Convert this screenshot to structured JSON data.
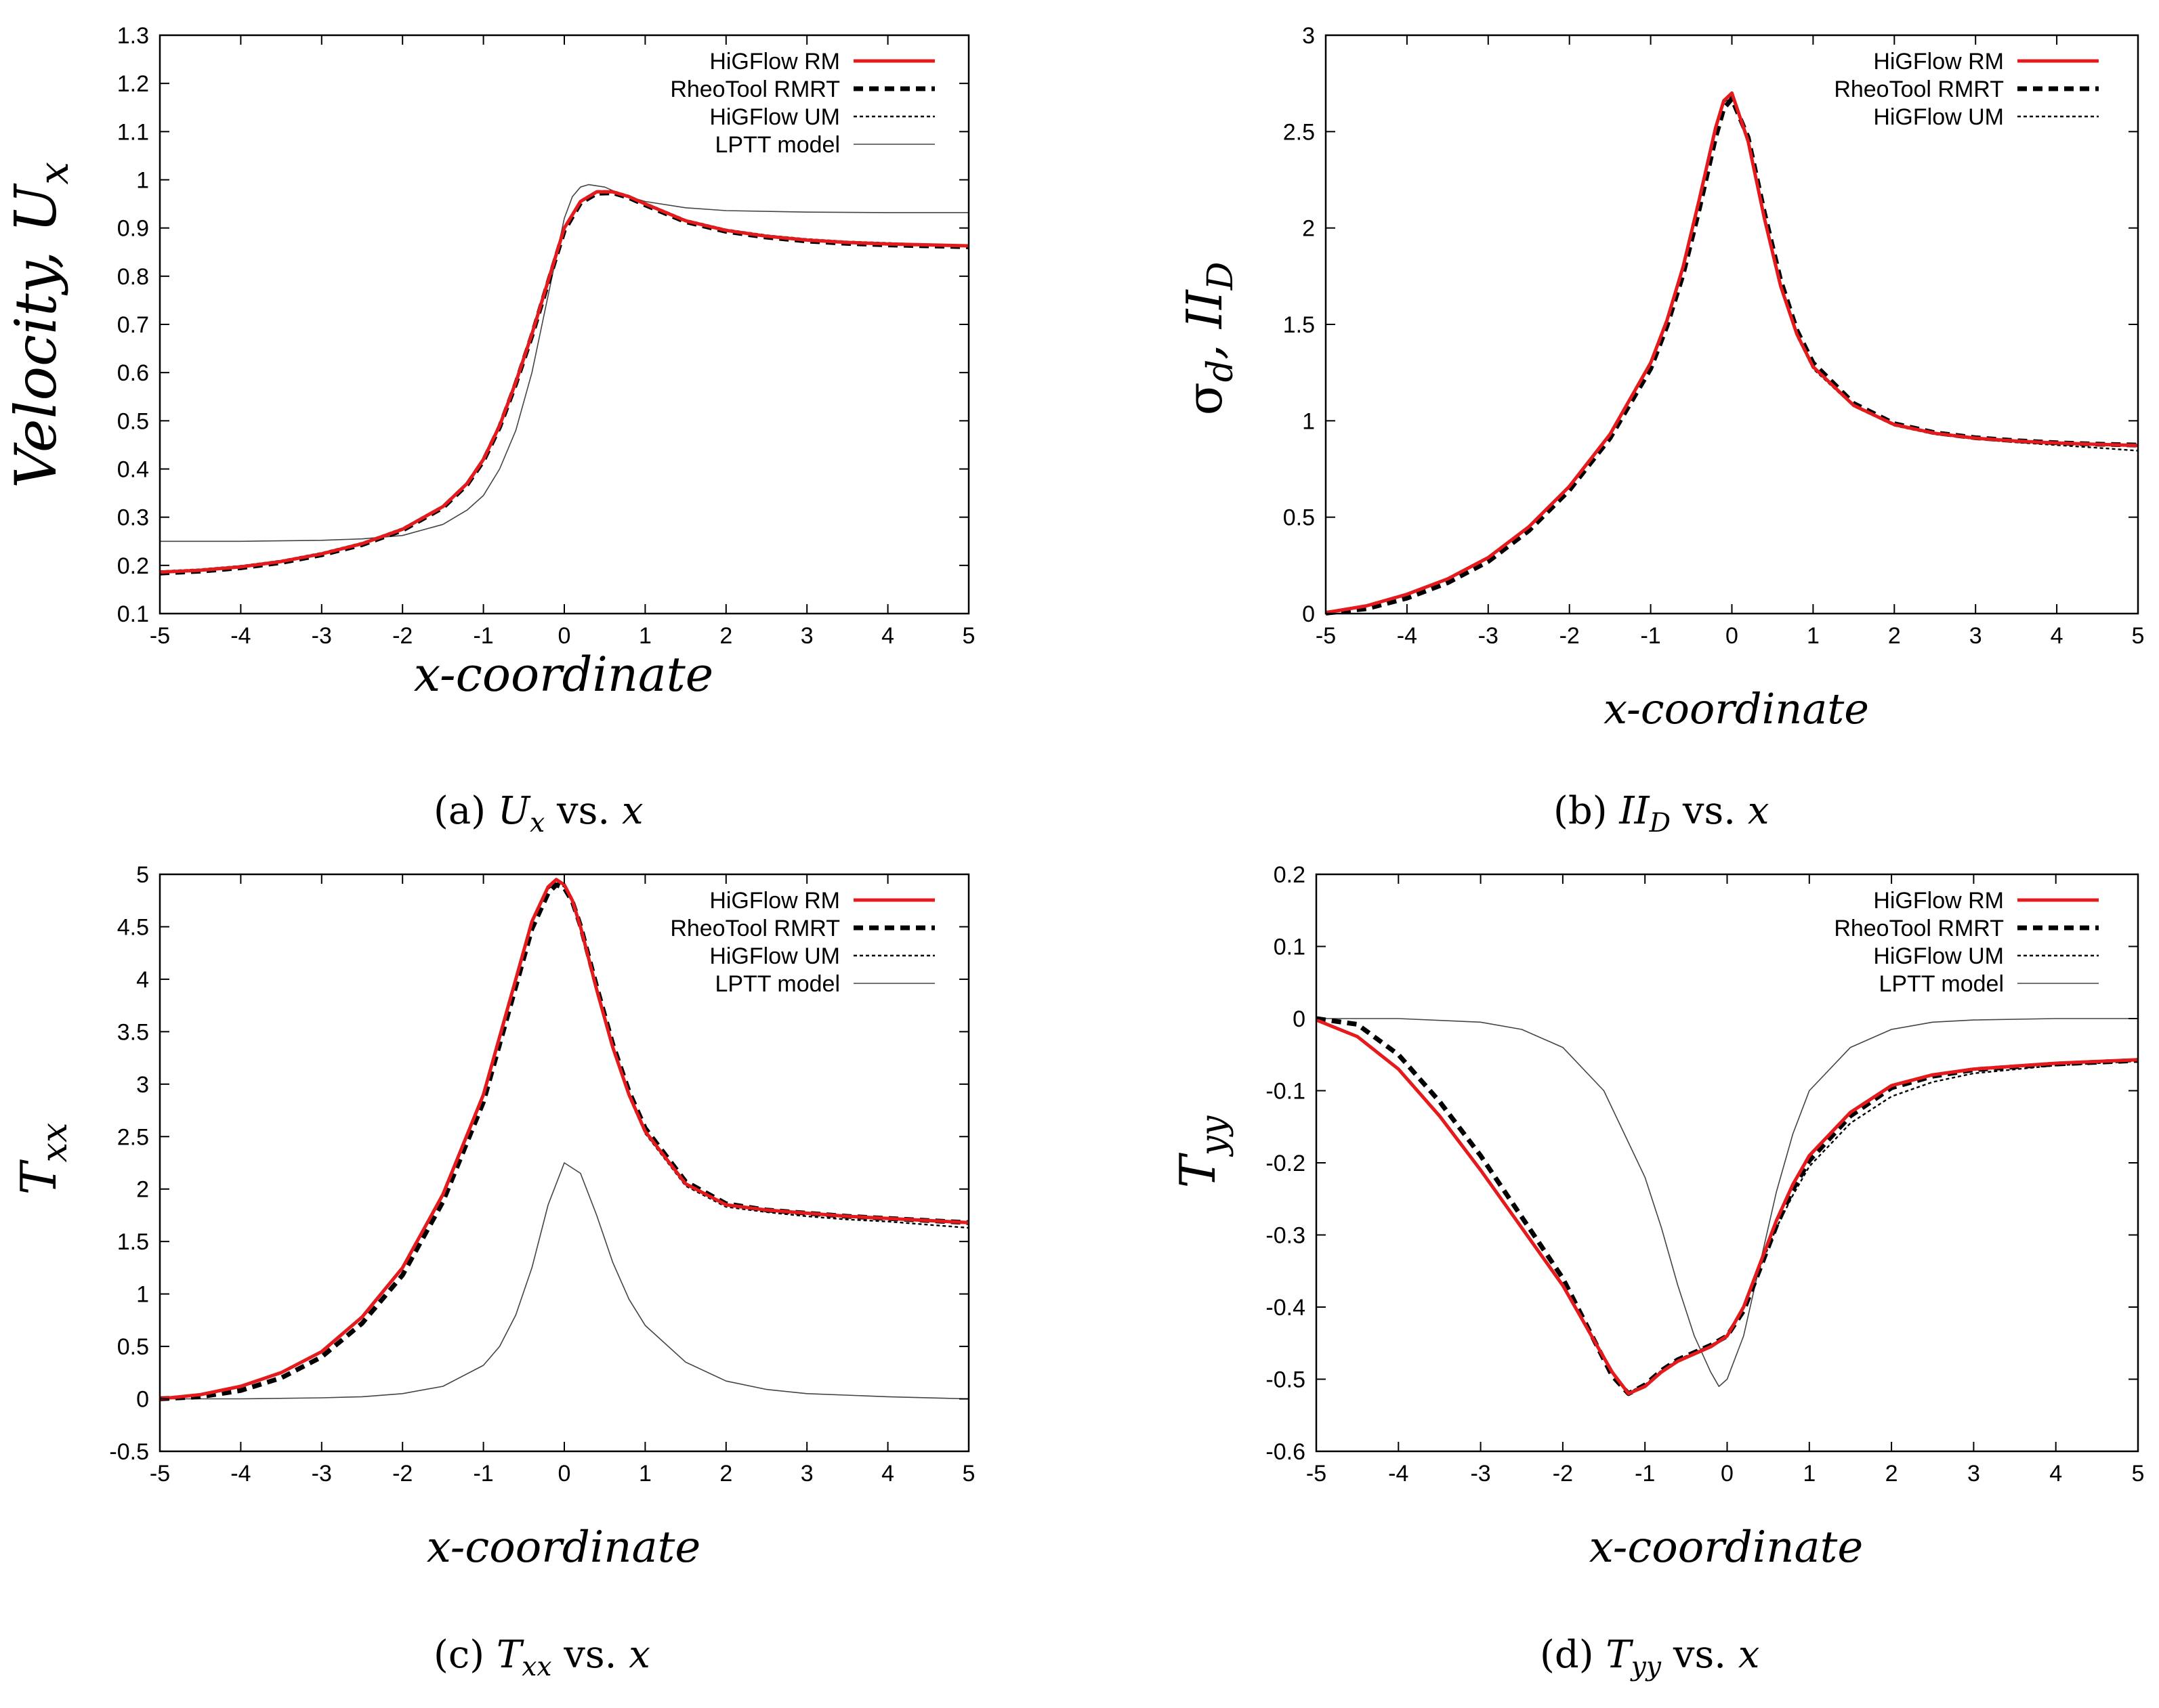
{
  "legend_labels": {
    "rm": "HiGFlow RM",
    "rmrt": "RheoTool RMRT",
    "um": "HiGFlow UM",
    "lptt": "LPTT model"
  },
  "series_colors": {
    "rm": "#e41a1c",
    "rmrt": "#000000",
    "um": "#000000",
    "lptt": "#444444"
  },
  "captions": [
    {
      "letter": "(a)",
      "symbol": "U",
      "subscript": "x",
      "rest": "vs.",
      "var": "x"
    },
    {
      "letter": "(b)",
      "symbol": "II",
      "subscript": "D",
      "rest": "vs.",
      "var": "x"
    },
    {
      "letter": "(c)",
      "symbol": "T",
      "subscript": "xx",
      "rest": "vs.",
      "var": "x"
    },
    {
      "letter": "(d)",
      "symbol": "T",
      "subscript": "yy",
      "rest": "vs.",
      "var": "x"
    }
  ],
  "chart_data": [
    {
      "type": "line",
      "id": "a",
      "xlabel": "x-coordinate",
      "ylabel": "Velocity, U",
      "ylabel_sub": "x",
      "xlim": [
        -5,
        5
      ],
      "ylim": [
        0.1,
        1.3
      ],
      "xticks": [
        -5,
        -4,
        -3,
        -2,
        -1,
        0,
        1,
        2,
        3,
        4,
        5
      ],
      "yticks": [
        0.1,
        0.2,
        0.3,
        0.4,
        0.5,
        0.6,
        0.7,
        0.8,
        0.9,
        1,
        1.1,
        1.2,
        1.3
      ],
      "legend": [
        "rm",
        "rmrt",
        "um",
        "lptt"
      ],
      "series": [
        {
          "key": "rm",
          "name": "HiGFlow RM",
          "x": [
            -5,
            -4.5,
            -4,
            -3.5,
            -3,
            -2.5,
            -2,
            -1.5,
            -1.2,
            -1,
            -0.8,
            -0.6,
            -0.4,
            -0.2,
            0,
            0.2,
            0.4,
            0.6,
            0.8,
            1,
            1.5,
            2,
            2.5,
            3,
            3.5,
            4,
            4.5,
            5
          ],
          "y": [
            0.186,
            0.19,
            0.197,
            0.208,
            0.224,
            0.245,
            0.275,
            0.322,
            0.37,
            0.42,
            0.49,
            0.58,
            0.68,
            0.79,
            0.9,
            0.955,
            0.975,
            0.975,
            0.965,
            0.95,
            0.915,
            0.895,
            0.883,
            0.875,
            0.87,
            0.867,
            0.865,
            0.863
          ]
        },
        {
          "key": "rmrt",
          "name": "RheoTool RMRT",
          "x": [
            -5,
            -4.5,
            -4,
            -3.5,
            -3,
            -2.5,
            -2,
            -1.5,
            -1.2,
            -1,
            -0.8,
            -0.6,
            -0.4,
            -0.2,
            0,
            0.2,
            0.4,
            0.6,
            0.8,
            1,
            1.5,
            2,
            2.5,
            3,
            3.5,
            4,
            4.5,
            5
          ],
          "y": [
            0.184,
            0.188,
            0.195,
            0.206,
            0.222,
            0.243,
            0.273,
            0.32,
            0.368,
            0.417,
            0.487,
            0.577,
            0.677,
            0.787,
            0.895,
            0.952,
            0.972,
            0.973,
            0.963,
            0.948,
            0.913,
            0.893,
            0.881,
            0.873,
            0.868,
            0.865,
            0.863,
            0.861
          ]
        },
        {
          "key": "um",
          "name": "HiGFlow UM",
          "x": [
            -5,
            -4.5,
            -4,
            -3.5,
            -3,
            -2.5,
            -2,
            -1.5,
            -1.2,
            -1,
            -0.8,
            -0.6,
            -0.4,
            -0.2,
            0,
            0.2,
            0.4,
            0.6,
            0.8,
            1,
            1.5,
            2,
            2.5,
            3,
            3.5,
            4,
            4.5,
            5
          ],
          "y": [
            0.188,
            0.192,
            0.199,
            0.21,
            0.226,
            0.247,
            0.277,
            0.324,
            0.372,
            0.422,
            0.492,
            0.582,
            0.682,
            0.792,
            0.902,
            0.957,
            0.977,
            0.977,
            0.967,
            0.952,
            0.917,
            0.897,
            0.885,
            0.877,
            0.872,
            0.869,
            0.866,
            0.864
          ]
        },
        {
          "key": "lptt",
          "name": "LPTT model",
          "x": [
            -5,
            -4,
            -3,
            -2.5,
            -2,
            -1.5,
            -1.2,
            -1,
            -0.8,
            -0.6,
            -0.4,
            -0.2,
            0,
            0.1,
            0.2,
            0.3,
            0.5,
            0.7,
            1,
            1.5,
            2,
            3,
            4,
            5
          ],
          "y": [
            0.25,
            0.25,
            0.252,
            0.255,
            0.262,
            0.285,
            0.315,
            0.345,
            0.4,
            0.48,
            0.6,
            0.76,
            0.92,
            0.965,
            0.985,
            0.99,
            0.985,
            0.97,
            0.955,
            0.942,
            0.936,
            0.933,
            0.932,
            0.932
          ]
        }
      ]
    },
    {
      "type": "line",
      "id": "b",
      "xlabel": "x-coordinate",
      "ylabel": "σ",
      "ylabel_sub": "d",
      "ylabel_tail": ", II",
      "ylabel_tail_sub": "D",
      "xlim": [
        -5,
        5
      ],
      "ylim": [
        0,
        3
      ],
      "xticks": [
        -5,
        -4,
        -3,
        -2,
        -1,
        0,
        1,
        2,
        3,
        4,
        5
      ],
      "yticks": [
        0,
        0.5,
        1,
        1.5,
        2,
        2.5,
        3
      ],
      "legend": [
        "rm",
        "rmrt",
        "um"
      ],
      "series": [
        {
          "key": "rm",
          "name": "HiGFlow RM",
          "x": [
            -5,
            -4.5,
            -4,
            -3.5,
            -3,
            -2.5,
            -2,
            -1.5,
            -1,
            -0.8,
            -0.6,
            -0.4,
            -0.2,
            -0.1,
            0,
            0.2,
            0.4,
            0.6,
            0.8,
            1,
            1.5,
            2,
            2.5,
            3,
            3.5,
            4,
            4.5,
            5
          ],
          "y": [
            0.005,
            0.04,
            0.1,
            0.18,
            0.29,
            0.45,
            0.66,
            0.93,
            1.3,
            1.52,
            1.8,
            2.15,
            2.52,
            2.66,
            2.7,
            2.45,
            2.05,
            1.7,
            1.45,
            1.28,
            1.08,
            0.98,
            0.935,
            0.91,
            0.895,
            0.885,
            0.878,
            0.872
          ]
        },
        {
          "key": "rmrt",
          "name": "RheoTool RMRT",
          "x": [
            -5,
            -4.5,
            -4,
            -3.5,
            -3,
            -2.5,
            -2,
            -1.5,
            -1,
            -0.8,
            -0.6,
            -0.4,
            -0.2,
            -0.1,
            0,
            0.2,
            0.4,
            0.6,
            0.8,
            1,
            1.5,
            2,
            2.5,
            3,
            3.5,
            4,
            4.5,
            5
          ],
          "y": [
            0.002,
            0.025,
            0.08,
            0.16,
            0.27,
            0.43,
            0.64,
            0.91,
            1.27,
            1.49,
            1.76,
            2.1,
            2.47,
            2.62,
            2.67,
            2.47,
            2.08,
            1.73,
            1.47,
            1.3,
            1.09,
            0.985,
            0.938,
            0.912,
            0.897,
            0.886,
            0.879,
            0.874
          ]
        },
        {
          "key": "um",
          "name": "HiGFlow UM",
          "x": [
            -5,
            -4.5,
            -4,
            -3.5,
            -3,
            -2.5,
            -2,
            -1.5,
            -1,
            -0.8,
            -0.6,
            -0.4,
            -0.2,
            -0.1,
            0,
            0.2,
            0.4,
            0.6,
            0.8,
            1,
            1.5,
            2,
            2.5,
            3,
            3.5,
            4,
            4.5,
            5
          ],
          "y": [
            0.006,
            0.042,
            0.102,
            0.182,
            0.292,
            0.452,
            0.662,
            0.932,
            1.3,
            1.52,
            1.8,
            2.14,
            2.51,
            2.65,
            2.69,
            2.44,
            2.04,
            1.69,
            1.44,
            1.27,
            1.075,
            0.975,
            0.93,
            0.905,
            0.888,
            0.874,
            0.86,
            0.845
          ]
        }
      ]
    },
    {
      "type": "line",
      "id": "c",
      "xlabel": "x-coordinate",
      "ylabel": "T",
      "ylabel_sub": "xx",
      "xlim": [
        -5,
        5
      ],
      "ylim": [
        -0.5,
        5
      ],
      "xticks": [
        -5,
        -4,
        -3,
        -2,
        -1,
        0,
        1,
        2,
        3,
        4,
        5
      ],
      "yticks": [
        -0.5,
        0,
        0.5,
        1,
        1.5,
        2,
        2.5,
        3,
        3.5,
        4,
        4.5,
        5
      ],
      "legend": [
        "rm",
        "rmrt",
        "um",
        "lptt"
      ],
      "series": [
        {
          "key": "rm",
          "name": "HiGFlow RM",
          "x": [
            -5,
            -4.5,
            -4,
            -3.5,
            -3,
            -2.5,
            -2,
            -1.5,
            -1,
            -0.8,
            -0.6,
            -0.4,
            -0.2,
            -0.1,
            0,
            0.1,
            0.2,
            0.4,
            0.6,
            0.8,
            1,
            1.5,
            2,
            2.5,
            3,
            3.5,
            4,
            4.5,
            5
          ],
          "y": [
            0.0,
            0.04,
            0.12,
            0.25,
            0.45,
            0.78,
            1.25,
            1.95,
            2.9,
            3.45,
            4.0,
            4.55,
            4.88,
            4.95,
            4.9,
            4.75,
            4.5,
            3.9,
            3.35,
            2.9,
            2.55,
            2.05,
            1.85,
            1.8,
            1.77,
            1.74,
            1.72,
            1.7,
            1.68
          ]
        },
        {
          "key": "rmrt",
          "name": "RheoTool RMRT",
          "x": [
            -5,
            -4.5,
            -4,
            -3.5,
            -3,
            -2.5,
            -2,
            -1.5,
            -1,
            -0.8,
            -0.6,
            -0.4,
            -0.2,
            -0.1,
            0,
            0.1,
            0.2,
            0.4,
            0.6,
            0.8,
            1,
            1.5,
            2,
            2.5,
            3,
            3.5,
            4,
            4.5,
            5
          ],
          "y": [
            0.0,
            0.02,
            0.08,
            0.2,
            0.4,
            0.72,
            1.18,
            1.88,
            2.83,
            3.38,
            3.93,
            4.48,
            4.82,
            4.9,
            4.87,
            4.74,
            4.51,
            3.93,
            3.38,
            2.93,
            2.58,
            2.07,
            1.86,
            1.8,
            1.77,
            1.74,
            1.72,
            1.7,
            1.68
          ]
        },
        {
          "key": "um",
          "name": "HiGFlow UM",
          "x": [
            -5,
            -4.5,
            -4,
            -3.5,
            -3,
            -2.5,
            -2,
            -1.5,
            -1,
            -0.8,
            -0.6,
            -0.4,
            -0.2,
            -0.1,
            0,
            0.1,
            0.2,
            0.4,
            0.6,
            0.8,
            1,
            1.5,
            2,
            2.5,
            3,
            3.5,
            4,
            4.5,
            5
          ],
          "y": [
            0.0,
            0.04,
            0.12,
            0.25,
            0.45,
            0.78,
            1.25,
            1.95,
            2.9,
            3.45,
            4.0,
            4.55,
            4.86,
            4.93,
            4.88,
            4.73,
            4.48,
            3.88,
            3.33,
            2.88,
            2.53,
            2.03,
            1.83,
            1.78,
            1.74,
            1.71,
            1.69,
            1.66,
            1.63
          ]
        },
        {
          "key": "lptt",
          "name": "LPTT model",
          "x": [
            -5,
            -4,
            -3,
            -2.5,
            -2,
            -1.5,
            -1,
            -0.8,
            -0.6,
            -0.4,
            -0.2,
            0,
            0.2,
            0.4,
            0.6,
            0.8,
            1,
            1.5,
            2,
            2.5,
            3,
            4,
            5
          ],
          "y": [
            0.0,
            0.0,
            0.01,
            0.02,
            0.05,
            0.12,
            0.32,
            0.5,
            0.8,
            1.25,
            1.85,
            2.25,
            2.15,
            1.75,
            1.3,
            0.95,
            0.7,
            0.35,
            0.17,
            0.09,
            0.05,
            0.02,
            0.0
          ]
        }
      ]
    },
    {
      "type": "line",
      "id": "d",
      "xlabel": "x-coordinate",
      "ylabel": "T",
      "ylabel_sub": "yy",
      "xlim": [
        -5,
        5
      ],
      "ylim": [
        -0.6,
        0.2
      ],
      "xticks": [
        -5,
        -4,
        -3,
        -2,
        -1,
        0,
        1,
        2,
        3,
        4,
        5
      ],
      "yticks": [
        -0.6,
        -0.5,
        -0.4,
        -0.3,
        -0.2,
        -0.1,
        0,
        0.1,
        0.2
      ],
      "legend": [
        "rm",
        "rmrt",
        "um",
        "lptt"
      ],
      "series": [
        {
          "key": "rm",
          "name": "HiGFlow RM",
          "x": [
            -5,
            -4.5,
            -4,
            -3.5,
            -3,
            -2.5,
            -2,
            -1.8,
            -1.6,
            -1.4,
            -1.2,
            -1,
            -0.8,
            -0.6,
            -0.4,
            -0.2,
            0,
            0.2,
            0.4,
            0.6,
            0.8,
            1,
            1.5,
            2,
            2.5,
            3,
            4,
            5
          ],
          "y": [
            -0.002,
            -0.025,
            -0.07,
            -0.135,
            -0.21,
            -0.29,
            -0.37,
            -0.41,
            -0.45,
            -0.49,
            -0.52,
            -0.51,
            -0.49,
            -0.475,
            -0.465,
            -0.455,
            -0.44,
            -0.4,
            -0.34,
            -0.28,
            -0.23,
            -0.19,
            -0.13,
            -0.093,
            -0.078,
            -0.07,
            -0.062,
            -0.057
          ]
        },
        {
          "key": "rmrt",
          "name": "RheoTool RMRT",
          "x": [
            -5,
            -4.5,
            -4,
            -3.5,
            -3,
            -2.5,
            -2,
            -1.8,
            -1.6,
            -1.4,
            -1.2,
            -1,
            -0.8,
            -0.6,
            -0.4,
            -0.2,
            0,
            0.2,
            0.4,
            0.6,
            0.8,
            1,
            1.5,
            2,
            2.5,
            3,
            4,
            5
          ],
          "y": [
            0.0,
            -0.008,
            -0.05,
            -0.115,
            -0.19,
            -0.275,
            -0.36,
            -0.405,
            -0.45,
            -0.495,
            -0.52,
            -0.508,
            -0.488,
            -0.473,
            -0.463,
            -0.453,
            -0.44,
            -0.405,
            -0.347,
            -0.287,
            -0.237,
            -0.197,
            -0.135,
            -0.096,
            -0.08,
            -0.071,
            -0.063,
            -0.058
          ]
        },
        {
          "key": "um",
          "name": "HiGFlow UM",
          "x": [
            -5,
            -4.5,
            -4,
            -3.5,
            -3,
            -2.5,
            -2,
            -1.8,
            -1.6,
            -1.4,
            -1.2,
            -1,
            -0.8,
            -0.6,
            -0.4,
            -0.2,
            0,
            0.2,
            0.4,
            0.6,
            0.8,
            1,
            1.5,
            2,
            2.5,
            3,
            4,
            5
          ],
          "y": [
            -0.002,
            -0.025,
            -0.07,
            -0.135,
            -0.21,
            -0.29,
            -0.37,
            -0.41,
            -0.45,
            -0.49,
            -0.518,
            -0.508,
            -0.488,
            -0.473,
            -0.463,
            -0.453,
            -0.44,
            -0.402,
            -0.345,
            -0.29,
            -0.245,
            -0.205,
            -0.145,
            -0.108,
            -0.088,
            -0.076,
            -0.065,
            -0.059
          ]
        },
        {
          "key": "lptt",
          "name": "LPTT model",
          "x": [
            -5,
            -4,
            -3,
            -2.5,
            -2,
            -1.5,
            -1,
            -0.8,
            -0.6,
            -0.4,
            -0.2,
            -0.1,
            0,
            0.2,
            0.4,
            0.6,
            0.8,
            1,
            1.5,
            2,
            2.5,
            3,
            4,
            5
          ],
          "y": [
            0.0,
            0.0,
            -0.005,
            -0.015,
            -0.04,
            -0.1,
            -0.22,
            -0.29,
            -0.37,
            -0.44,
            -0.49,
            -0.51,
            -0.5,
            -0.44,
            -0.34,
            -0.24,
            -0.16,
            -0.1,
            -0.04,
            -0.015,
            -0.005,
            -0.002,
            0.0,
            0.0
          ]
        }
      ]
    }
  ]
}
